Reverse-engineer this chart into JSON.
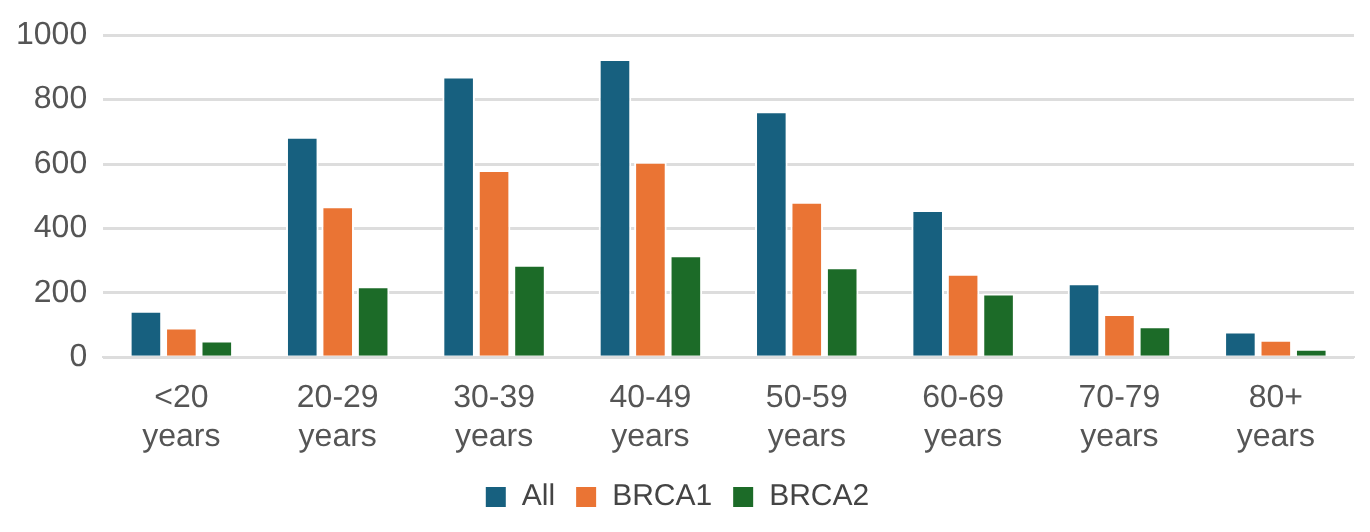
{
  "chart_data": {
    "type": "bar",
    "categories": [
      "<20 years",
      "20-29 years",
      "30-39 years",
      "40-49 years",
      "50-59 years",
      "60-69 years",
      "70-79 years",
      "80+ years"
    ],
    "series": [
      {
        "name": "All",
        "color": "#17607f",
        "values": [
          144,
          685,
          872,
          926,
          764,
          457,
          230,
          80
        ]
      },
      {
        "name": "BRCA1",
        "color": "#ea7434",
        "values": [
          92,
          469,
          581,
          607,
          483,
          259,
          134,
          54
        ]
      },
      {
        "name": "BRCA2",
        "color": "#1c6b28",
        "values": [
          52,
          220,
          287,
          317,
          279,
          198,
          96,
          26
        ]
      }
    ],
    "ylim": [
      0,
      1000
    ],
    "yticks": [
      0,
      200,
      400,
      600,
      800,
      1000
    ],
    "grid": "y",
    "legend": "bottom"
  }
}
